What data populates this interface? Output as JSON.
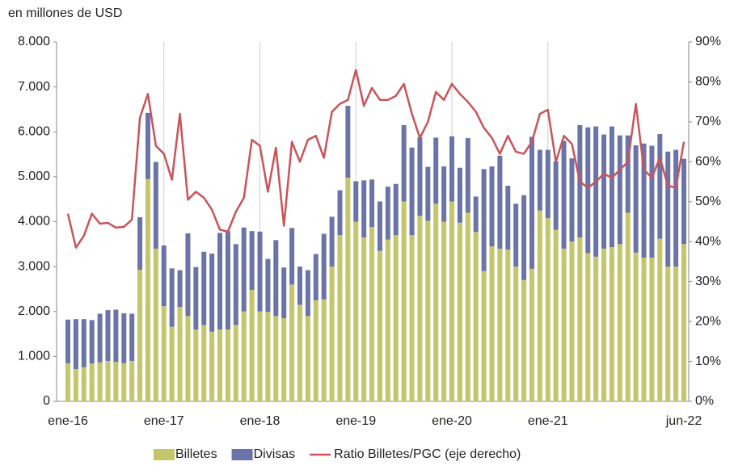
{
  "chart_data": {
    "type": "bar",
    "y_label": "en millones de USD",
    "categories": [
      "ene-16",
      null,
      null,
      null,
      null,
      null,
      null,
      null,
      null,
      null,
      null,
      null,
      "ene-17",
      null,
      null,
      null,
      null,
      null,
      null,
      null,
      null,
      null,
      null,
      null,
      "ene-18",
      null,
      null,
      null,
      null,
      null,
      null,
      null,
      null,
      null,
      null,
      null,
      "ene-19",
      null,
      null,
      null,
      null,
      null,
      null,
      null,
      null,
      null,
      null,
      null,
      "ene-20",
      null,
      null,
      null,
      null,
      null,
      null,
      null,
      null,
      null,
      null,
      null,
      "ene-21",
      null,
      null,
      null,
      null,
      null,
      null,
      null,
      null,
      null,
      null,
      null,
      null,
      null,
      null,
      null,
      null,
      "jun-22"
    ],
    "series": [
      {
        "name": "Billetes",
        "color": "#c3c66b",
        "stack": "a",
        "values": [
          850,
          720,
          760,
          840,
          870,
          900,
          880,
          850,
          900,
          2930,
          4950,
          3400,
          2120,
          1660,
          2100,
          1900,
          1600,
          1700,
          1550,
          1600,
          1600,
          1700,
          2000,
          2480,
          2000,
          1990,
          1900,
          1850,
          2600,
          2150,
          1900,
          2250,
          2270,
          3000,
          3700,
          4980,
          4000,
          3650,
          3880,
          3350,
          3600,
          3700,
          4450,
          3700,
          4130,
          4020,
          4400,
          4000,
          4450,
          3980,
          4200,
          3770,
          2900,
          3450,
          3400,
          3380,
          3000,
          2700,
          2950,
          4250,
          4080,
          3820,
          3400,
          3560,
          3650,
          3300,
          3220,
          3400,
          3430,
          3500,
          4200,
          3310,
          3200,
          3200,
          3620,
          3000,
          3000,
          3500
        ]
      },
      {
        "name": "Divisas",
        "color": "#6b74a8",
        "stack": "a",
        "values": [
          970,
          1110,
          1070,
          970,
          1080,
          1130,
          1160,
          1110,
          1050,
          1170,
          1470,
          1930,
          1350,
          1300,
          820,
          1840,
          1390,
          1630,
          1740,
          2150,
          2190,
          1800,
          1870,
          1310,
          1780,
          1180,
          1690,
          1130,
          1260,
          850,
          1020,
          1030,
          1460,
          1110,
          1000,
          1600,
          900,
          1270,
          1060,
          1100,
          1180,
          1140,
          1700,
          1950,
          1750,
          1200,
          1470,
          1230,
          1450,
          1220,
          1660,
          790,
          2270,
          1780,
          2070,
          1420,
          1400,
          1890,
          2940,
          1350,
          1520,
          1520,
          2400,
          1850,
          2500,
          2800,
          2900,
          2540,
          2690,
          2420,
          1720,
          2390,
          2540,
          2490,
          2330,
          2560,
          2600,
          1900
        ]
      },
      {
        "name": "Ratio Billetes/PGC (eje derecho)",
        "color": "#c9545a",
        "type": "line",
        "axis": "y2",
        "values": [
          47,
          38.5,
          41.5,
          47,
          44.5,
          44.7,
          43.5,
          43.7,
          45.5,
          71,
          77,
          64,
          62,
          55.5,
          72,
          50.5,
          52.5,
          51,
          48,
          43,
          42.5,
          47.5,
          51,
          65.5,
          64,
          52.5,
          63.5,
          44,
          65,
          60,
          65.5,
          66.5,
          61,
          72.5,
          74.5,
          75.5,
          83,
          74,
          78.5,
          75.5,
          75.5,
          76.5,
          79.5,
          72,
          66,
          70,
          77.5,
          75.5,
          79.5,
          77,
          75,
          72.5,
          68.5,
          66,
          62,
          66.5,
          62.5,
          62,
          65,
          72,
          73,
          60,
          66.5,
          64.5,
          55,
          53.5,
          55,
          57,
          56,
          58,
          60,
          74.5,
          58,
          56,
          61,
          54,
          53.5,
          65
        ]
      }
    ],
    "ylim": [
      0,
      8000
    ],
    "yticks": [
      0,
      {
        "value": 1000,
        "label": "1.000"
      },
      {
        "value": 2000,
        "label": "2.000"
      },
      {
        "value": 3000,
        "label": "3.000"
      },
      {
        "value": 4000,
        "label": "4.000"
      },
      {
        "value": 5000,
        "label": "5.000"
      },
      {
        "value": 6000,
        "label": "6.000"
      },
      {
        "value": 7000,
        "label": "7.000"
      },
      {
        "value": 8000,
        "label": "8.000"
      }
    ],
    "y2lim": [
      0,
      90
    ],
    "y2ticks": [
      {
        "value": 0,
        "label": "0%"
      },
      {
        "value": 10,
        "label": "10%"
      },
      {
        "value": 20,
        "label": "20%"
      },
      {
        "value": 30,
        "label": "30%"
      },
      {
        "value": 40,
        "label": "40%"
      },
      {
        "value": 50,
        "label": "50%"
      },
      {
        "value": 60,
        "label": "60%"
      },
      {
        "value": 70,
        "label": "70%"
      },
      {
        "value": 80,
        "label": "80%"
      },
      {
        "value": 90,
        "label": "90%"
      }
    ],
    "legend": "bottom"
  }
}
